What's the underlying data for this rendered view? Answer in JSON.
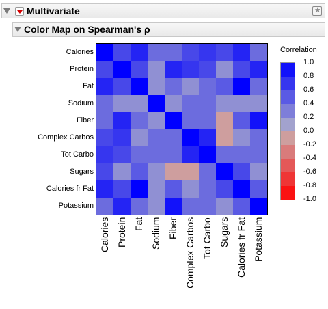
{
  "outline": {
    "title": "Multivariate",
    "sub_title": "Color Map on Spearman's ρ"
  },
  "icons": {
    "disclosure": "triangle-down-icon",
    "menu": "red-triangle-menu-icon",
    "pin": "pin-icon"
  },
  "colors": {
    "positive": "#0000ff",
    "negative": "#ff0000",
    "neutral": "#b4b4c8",
    "header_bg": "#ececec"
  },
  "chart_data": {
    "type": "heatmap",
    "title": "",
    "rows": [
      "Calories",
      "Protein",
      "Fat",
      "Sodium",
      "Fiber",
      "Complex Carbos",
      "Tot Carbo",
      "Sugars",
      "Calories fr Fat",
      "Potassium"
    ],
    "columns": [
      "Calories",
      "Protein",
      "Fat",
      "Sodium",
      "Fiber",
      "Complex Carbos",
      "Tot Carbo",
      "Sugars",
      "Calories fr Fat",
      "Potassium"
    ],
    "values": [
      [
        1.0,
        0.6,
        0.8,
        0.4,
        0.4,
        0.6,
        0.7,
        0.6,
        0.8,
        0.4
      ],
      [
        0.6,
        1.0,
        0.6,
        0.2,
        0.8,
        0.7,
        0.6,
        0.2,
        0.6,
        0.8
      ],
      [
        0.8,
        0.6,
        1.0,
        0.2,
        0.4,
        0.2,
        0.4,
        0.5,
        1.0,
        0.4
      ],
      [
        0.4,
        0.2,
        0.2,
        1.0,
        0.2,
        0.4,
        0.4,
        0.2,
        0.2,
        0.2
      ],
      [
        0.4,
        0.8,
        0.4,
        0.2,
        1.0,
        0.4,
        0.4,
        -0.1,
        0.5,
        0.9
      ],
      [
        0.6,
        0.7,
        0.2,
        0.4,
        0.4,
        1.0,
        0.8,
        -0.1,
        0.2,
        0.4
      ],
      [
        0.7,
        0.6,
        0.4,
        0.4,
        0.4,
        0.8,
        1.0,
        0.4,
        0.4,
        0.4
      ],
      [
        0.6,
        0.2,
        0.5,
        0.2,
        -0.1,
        -0.1,
        0.4,
        1.0,
        0.6,
        0.2
      ],
      [
        0.8,
        0.6,
        1.0,
        0.2,
        0.5,
        0.2,
        0.4,
        0.6,
        1.0,
        0.5
      ],
      [
        0.4,
        0.8,
        0.4,
        0.2,
        0.9,
        0.4,
        0.4,
        0.2,
        0.5,
        1.0
      ]
    ],
    "legend": {
      "title": "Correlation",
      "ticks": [
        "1.0",
        "0.8",
        "0.6",
        "0.4",
        "0.2",
        "0.0",
        "-0.2",
        "-0.4",
        "-0.6",
        "-0.8",
        "-1.0"
      ],
      "range": [
        -1.0,
        1.0
      ],
      "placement": "right"
    }
  }
}
